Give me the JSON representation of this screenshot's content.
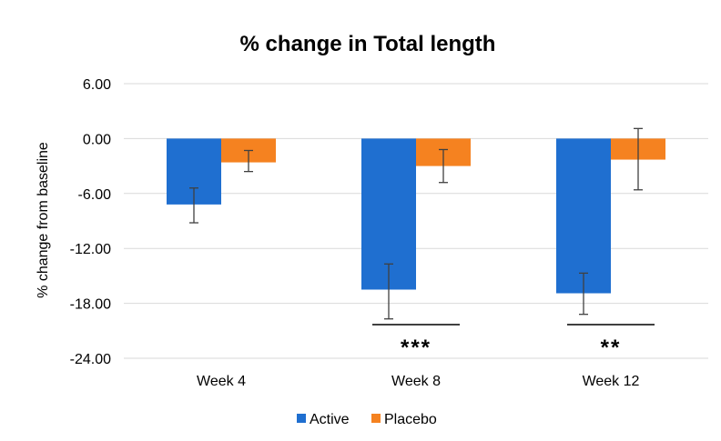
{
  "chart_data": {
    "type": "bar",
    "title": "% change in Total length",
    "xlabel": "",
    "ylabel": "% change from baseline",
    "ylim": [
      -24,
      6
    ],
    "yticks": [
      "6.00",
      "0.00",
      "-6.00",
      "-12.00",
      "-18.00",
      "-24.00"
    ],
    "ytick_values": [
      6,
      0,
      -6,
      -12,
      -18,
      -24
    ],
    "categories": [
      "Week 4",
      "Week 8",
      "Week 12"
    ],
    "series": [
      {
        "name": "Active",
        "color": "#1f6fd0",
        "values": [
          -7.2,
          -16.5,
          -16.9
        ],
        "err_low": [
          -9.2,
          -19.7,
          -19.2
        ],
        "err_high": [
          -5.4,
          -13.7,
          -14.7
        ]
      },
      {
        "name": "Placebo",
        "color": "#f58220",
        "values": [
          -2.6,
          -3.0,
          -2.3
        ],
        "err_low": [
          -3.6,
          -4.8,
          -5.6
        ],
        "err_high": [
          -1.3,
          -1.2,
          1.1
        ]
      }
    ],
    "annotations": [
      {
        "category": "Week 8",
        "text": "***"
      },
      {
        "category": "Week 12",
        "text": "**"
      }
    ],
    "grid": true,
    "legend_position": "bottom"
  }
}
